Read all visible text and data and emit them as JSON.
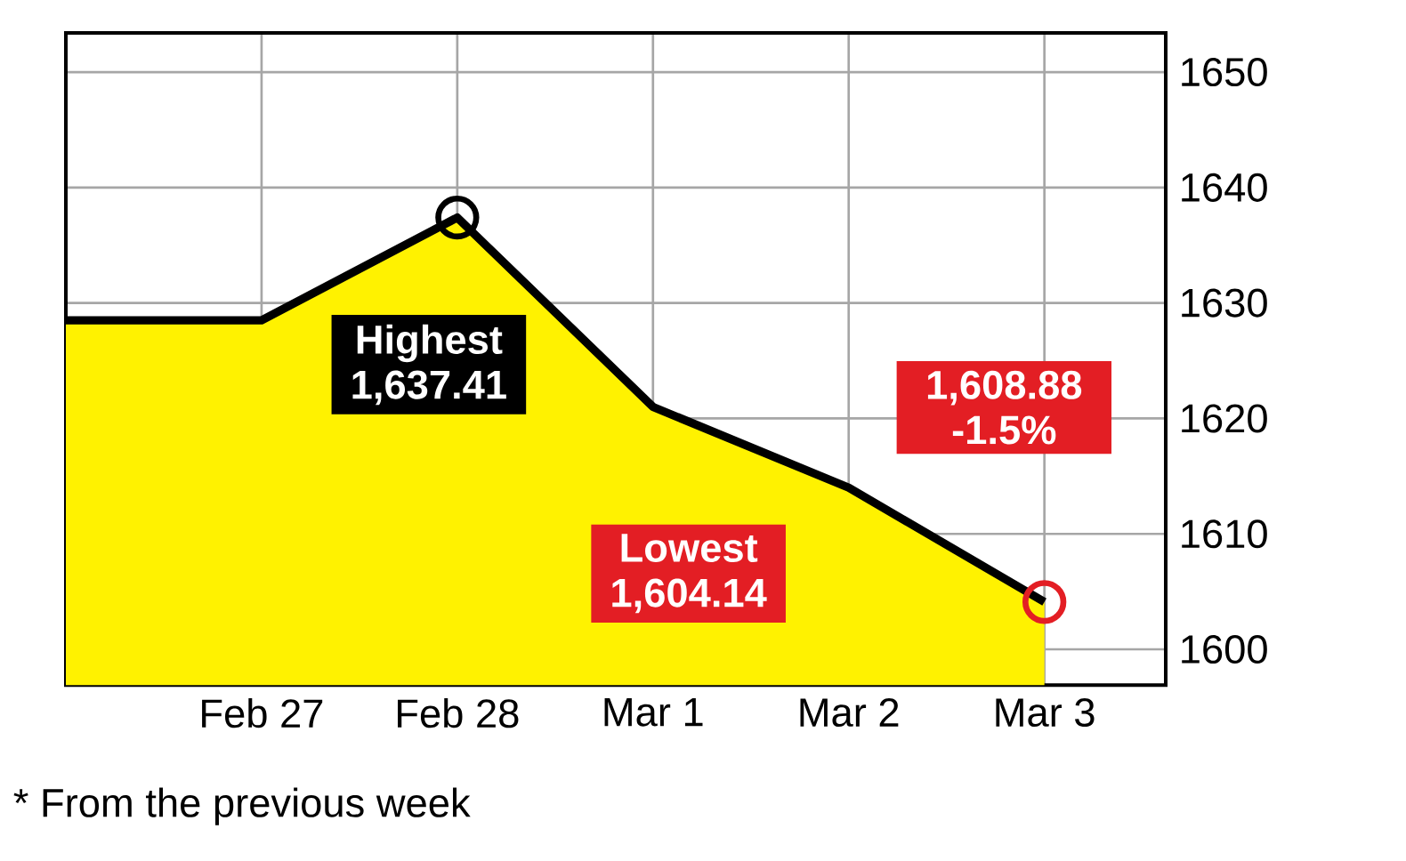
{
  "chart_data": {
    "type": "area",
    "categories": [
      null,
      "Feb 27",
      "Feb 28",
      "Mar 1",
      "Mar 2",
      "Mar 3"
    ],
    "series": [
      {
        "color": "#fff200",
        "values": [
          1628.5,
          1628.5,
          1637.4,
          1621,
          1614,
          1604.1
        ]
      }
    ],
    "ylim": [
      1596.9,
      1653.4
    ],
    "yticks": [
      1600,
      1610,
      1620,
      1630,
      1640,
      1650
    ],
    "grid": true,
    "annotations": [
      {
        "text": "Highest 1,637.41",
        "x": "Feb 28",
        "y": 1637.4
      },
      "Lowest 1,604.14",
      "1,608.88 -1.5%",
      "* From the previous week"
    ]
  }
}
